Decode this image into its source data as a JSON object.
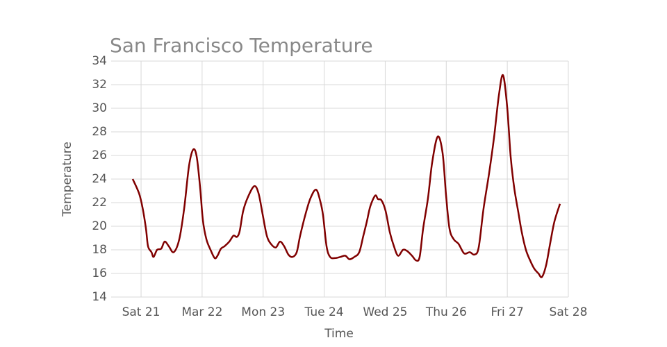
{
  "chart_data": {
    "type": "line",
    "title": "San Francisco Temperature",
    "x_label": "Time",
    "y_label": "Temperature",
    "xlim": [
      20.51,
      28
    ],
    "ylim": [
      14,
      34
    ],
    "xticks": [
      {
        "value": 21,
        "label": "Sat 21"
      },
      {
        "value": 22,
        "label": "Mar 22"
      },
      {
        "value": 23,
        "label": "Mon 23"
      },
      {
        "value": 24,
        "label": "Tue 24"
      },
      {
        "value": 25,
        "label": "Wed 25"
      },
      {
        "value": 26,
        "label": "Thu 26"
      },
      {
        "value": 27,
        "label": "Fri 27"
      },
      {
        "value": 28,
        "label": "Sat 28"
      }
    ],
    "yticks": [
      14,
      16,
      18,
      20,
      22,
      24,
      26,
      28,
      30,
      32,
      34
    ],
    "grid": true,
    "series": [
      {
        "name": "Temperature",
        "color": "#800000",
        "x": [
          20.863,
          20.966,
          21.023,
          21.08,
          21.114,
          21.171,
          21.205,
          21.262,
          21.33,
          21.387,
          21.455,
          21.535,
          21.626,
          21.706,
          21.785,
          21.854,
          21.911,
          21.967,
          22.013,
          22.07,
          22.138,
          22.206,
          22.252,
          22.309,
          22.366,
          22.446,
          22.514,
          22.571,
          22.616,
          22.673,
          22.753,
          22.855,
          22.924,
          22.992,
          23.06,
          23.128,
          23.208,
          23.276,
          23.345,
          23.413,
          23.481,
          23.55,
          23.606,
          23.698,
          23.777,
          23.868,
          23.937,
          23.982,
          24.039,
          24.096,
          24.176,
          24.267,
          24.346,
          24.415,
          24.494,
          24.574,
          24.642,
          24.699,
          24.756,
          24.836,
          24.881,
          24.938,
          25.006,
          25.075,
          25.143,
          25.211,
          25.291,
          25.359,
          25.439,
          25.507,
          25.564,
          25.621,
          25.701,
          25.769,
          25.86,
          25.94,
          25.997,
          26.053,
          26.122,
          26.202,
          26.293,
          26.384,
          26.463,
          26.531,
          26.611,
          26.702,
          26.782,
          26.862,
          26.93,
          26.998,
          27.055,
          27.112,
          27.18,
          27.237,
          27.305,
          27.374,
          27.442,
          27.51,
          27.567,
          27.636,
          27.704,
          27.772,
          27.863
        ],
        "values": [
          24.0,
          22.8,
          21.6,
          19.8,
          18.3,
          17.8,
          17.4,
          18.0,
          18.1,
          18.7,
          18.3,
          17.8,
          18.9,
          21.5,
          25.1,
          26.5,
          25.9,
          23.3,
          20.5,
          18.9,
          18.0,
          17.3,
          17.5,
          18.1,
          18.3,
          18.7,
          19.2,
          19.1,
          19.6,
          21.3,
          22.5,
          23.4,
          22.8,
          21.0,
          19.2,
          18.5,
          18.2,
          18.7,
          18.3,
          17.6,
          17.4,
          17.8,
          19.2,
          21.1,
          22.4,
          23.1,
          22.1,
          20.9,
          18.3,
          17.4,
          17.3,
          17.4,
          17.5,
          17.2,
          17.4,
          17.8,
          19.2,
          20.4,
          21.7,
          22.6,
          22.3,
          22.2,
          21.3,
          19.5,
          18.3,
          17.5,
          18.0,
          17.9,
          17.5,
          17.1,
          17.4,
          19.8,
          22.4,
          25.4,
          27.6,
          26.2,
          22.6,
          19.8,
          18.9,
          18.5,
          17.7,
          17.8,
          17.6,
          18.2,
          21.5,
          24.5,
          27.5,
          31.1,
          32.8,
          30.1,
          25.9,
          23.3,
          21.2,
          19.5,
          18.0,
          17.1,
          16.4,
          16.0,
          15.7,
          16.7,
          18.6,
          20.4,
          21.9
        ]
      }
    ]
  }
}
